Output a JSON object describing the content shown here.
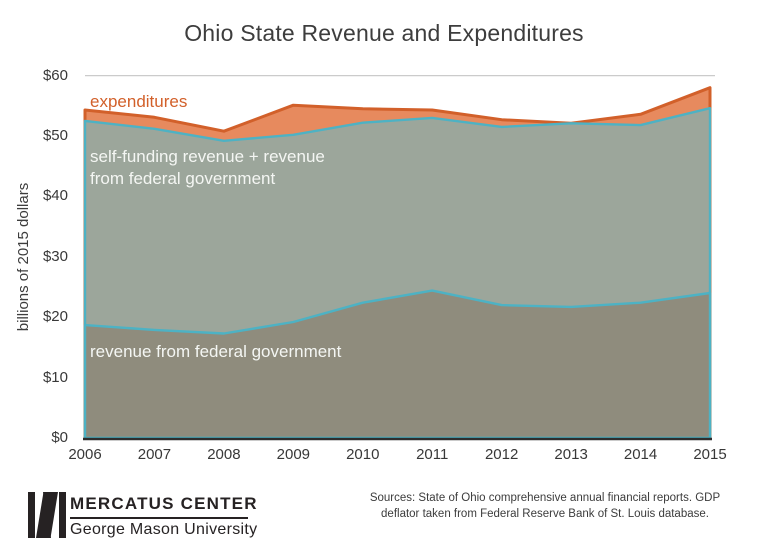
{
  "title": "Ohio State Revenue and Expenditures",
  "chart_data": {
    "type": "area",
    "x": [
      2006,
      2007,
      2008,
      2009,
      2010,
      2011,
      2012,
      2013,
      2014,
      2015
    ],
    "series": [
      {
        "name": "expenditures",
        "values": [
          54.3,
          53.1,
          50.8,
          55.1,
          54.5,
          54.3,
          52.7,
          52.1,
          53.6,
          58.0
        ],
        "line_color": "#d2602a",
        "fill_color": "#e78a5e"
      },
      {
        "name": "self-funding revenue + revenue from federal government",
        "values": [
          52.5,
          51.2,
          49.2,
          50.2,
          52.2,
          53.0,
          51.5,
          52.1,
          51.8,
          54.6
        ],
        "line_color": "#4db2c4",
        "fill_color": "#9ca69b"
      },
      {
        "name": "revenue from federal government",
        "values": [
          18.7,
          17.9,
          17.3,
          19.2,
          22.4,
          24.4,
          22.0,
          21.7,
          22.4,
          24.0
        ],
        "line_color": "#4db2c4",
        "fill_color": "#8f8c7d"
      }
    ],
    "ylabel": "billions of 2015 dollars",
    "xlabel": "",
    "ylim": [
      0,
      60
    ],
    "yticks": [
      {
        "v": 0,
        "label": "$0"
      },
      {
        "v": 10,
        "label": "$10"
      },
      {
        "v": 20,
        "label": "$20"
      },
      {
        "v": 30,
        "label": "$30"
      },
      {
        "v": 40,
        "label": "$40"
      },
      {
        "v": 50,
        "label": "$50"
      },
      {
        "v": 60,
        "label": "$60"
      }
    ],
    "grid": "single horizontal gridline at $60 only",
    "legend_position": "labels drawn inside areas",
    "grid_color": "#cbcbcb",
    "axis_color": "#2e2e2e"
  },
  "labels": {
    "expenditures": "expenditures",
    "middle_line1": "self-funding revenue + revenue",
    "middle_line2": "from federal government",
    "bottom": "revenue from federal government"
  },
  "footer": {
    "logo_title": "MERCATUS CENTER",
    "logo_subtitle": "George Mason University",
    "sources_line1": "Sources: State of Ohio comprehensive annual financial reports. GDP",
    "sources_line2": "deflator taken from Federal Reserve Bank of St. Louis database."
  }
}
